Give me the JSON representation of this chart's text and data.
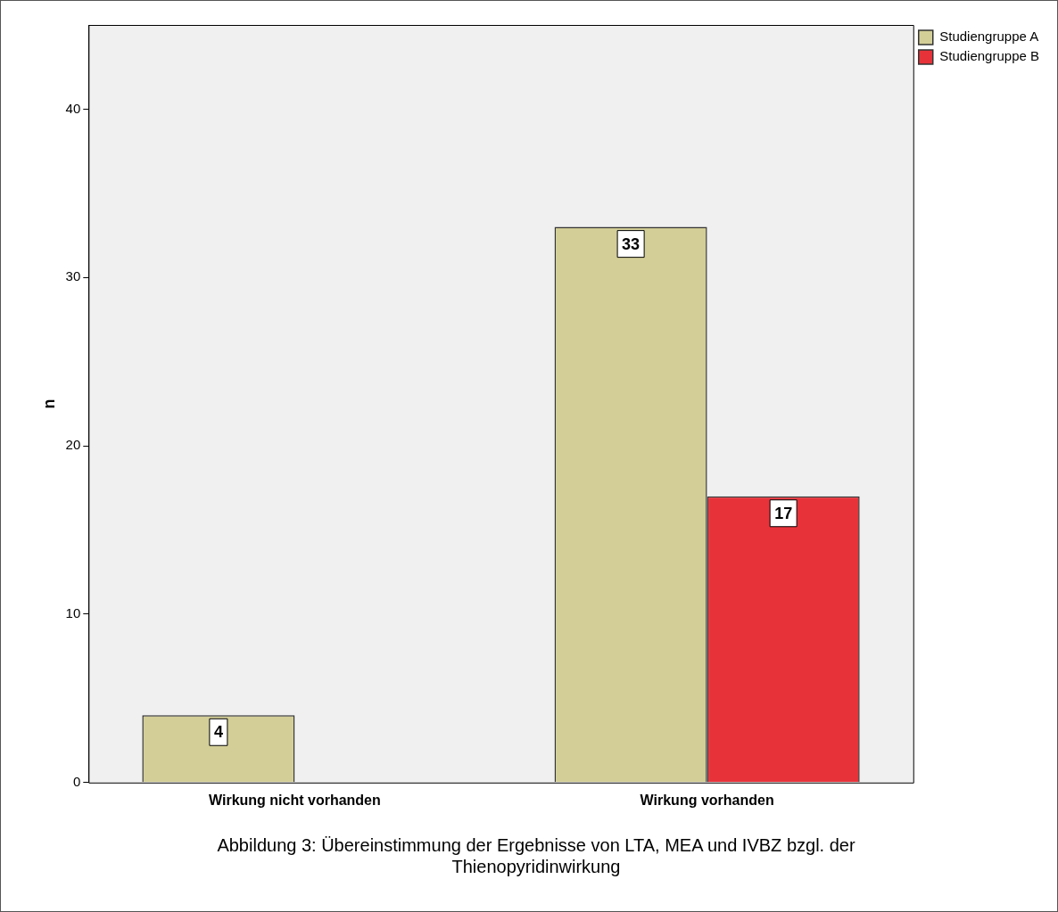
{
  "chart_data": {
    "type": "bar",
    "ylabel": "n",
    "categories": [
      "Wirkung nicht vorhanden",
      "Wirkung vorhanden"
    ],
    "series": [
      {
        "name": "Studiengruppe A",
        "color": "#d3ce97",
        "values": [
          4,
          33
        ]
      },
      {
        "name": "Studiengruppe B",
        "color": "#e8323a",
        "values": [
          null,
          17
        ]
      }
    ],
    "ylim": [
      0,
      45
    ],
    "yticks": [
      0,
      10,
      20,
      30,
      40
    ],
    "grid": false,
    "legend": "top right",
    "data_labels": true,
    "annotations": [
      "Abbildung 3:   Übereinstimmung der Ergebnisse von LTA, MEA und IVBZ bzgl. der Thienopyridinwirkung"
    ]
  }
}
